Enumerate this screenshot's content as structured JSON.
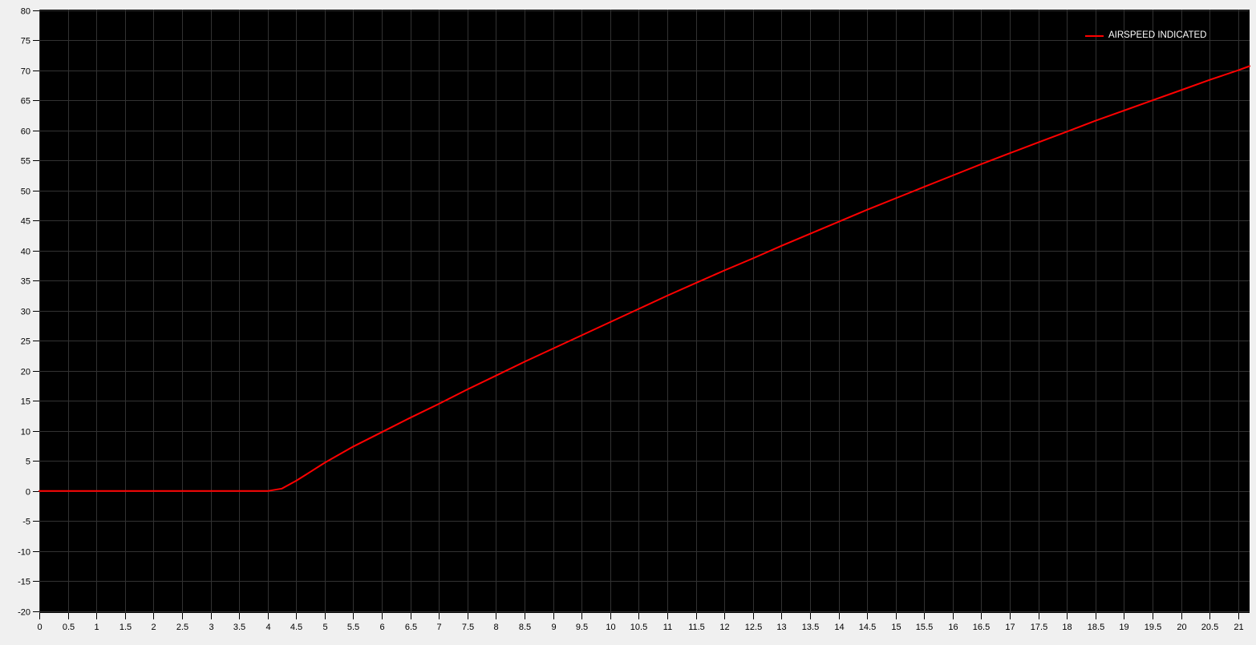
{
  "window": {
    "background_color": "#f0f0f0"
  },
  "chart_data": {
    "type": "line",
    "title": "",
    "xlabel": "",
    "ylabel": "",
    "grid": true,
    "plot_background": "#000000",
    "grid_color": "#323232",
    "tick_color": "#000000",
    "tick_label_color": "#000000",
    "x_axis": {
      "min": 0,
      "max": 21.2,
      "tick_start": 0,
      "tick_step": 0.5,
      "tick_end": 21
    },
    "y_axis": {
      "min": -20.3,
      "max": 80.1,
      "tick_start": -20,
      "tick_step": 5,
      "tick_end": 80
    },
    "legend": {
      "position": "top-right",
      "entries": [
        {
          "label": "AIRSPEED INDICATED",
          "color": "#ff0000"
        }
      ]
    },
    "series": [
      {
        "name": "AIRSPEED INDICATED",
        "color": "#ff0000",
        "line_width": 2,
        "points": [
          [
            0,
            0
          ],
          [
            0.5,
            0
          ],
          [
            1,
            0
          ],
          [
            1.5,
            0
          ],
          [
            2,
            0
          ],
          [
            2.5,
            0
          ],
          [
            3,
            0
          ],
          [
            3.5,
            0
          ],
          [
            4,
            0
          ],
          [
            4.25,
            0.4
          ],
          [
            4.5,
            1.7
          ],
          [
            4.75,
            3.2
          ],
          [
            5,
            4.7
          ],
          [
            5.5,
            7.4
          ],
          [
            6,
            9.8
          ],
          [
            6.5,
            12.2
          ],
          [
            7,
            14.5
          ],
          [
            7.5,
            16.9
          ],
          [
            8,
            19.2
          ],
          [
            8.5,
            21.5
          ],
          [
            9,
            23.7
          ],
          [
            9.5,
            25.9
          ],
          [
            10,
            28.1
          ],
          [
            10.5,
            30.3
          ],
          [
            11,
            32.5
          ],
          [
            11.5,
            34.6
          ],
          [
            12,
            36.7
          ],
          [
            12.5,
            38.7
          ],
          [
            13,
            40.8
          ],
          [
            13.5,
            42.8
          ],
          [
            14,
            44.8
          ],
          [
            14.5,
            46.8
          ],
          [
            15,
            48.7
          ],
          [
            15.5,
            50.6
          ],
          [
            16,
            52.5
          ],
          [
            16.5,
            54.4
          ],
          [
            17,
            56.2
          ],
          [
            17.5,
            58.0
          ],
          [
            18,
            59.8
          ],
          [
            18.5,
            61.6
          ],
          [
            19,
            63.3
          ],
          [
            19.5,
            65.0
          ],
          [
            20,
            66.7
          ],
          [
            20.5,
            68.4
          ],
          [
            21,
            70.0
          ],
          [
            21.2,
            70.7
          ]
        ]
      }
    ]
  }
}
